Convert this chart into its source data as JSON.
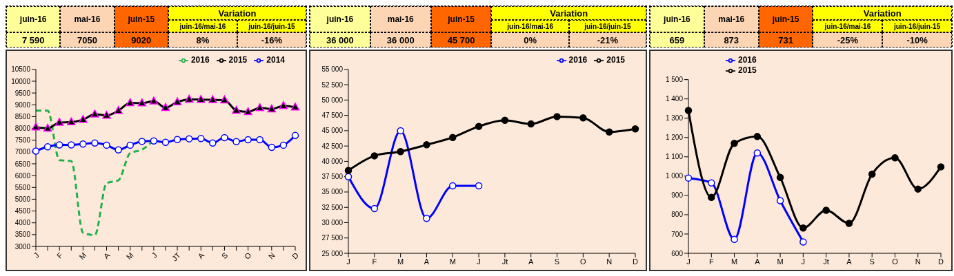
{
  "chart_data": [
    {
      "type": "line",
      "categories": [
        "J",
        null,
        "F",
        null,
        "M",
        null,
        "A",
        null,
        "M",
        null,
        "J",
        null,
        "JT",
        null,
        "A",
        null,
        "S",
        null,
        "O",
        null,
        "N",
        null,
        "D"
      ],
      "annotations": [
        "juin-16",
        "mai-16",
        "juin-15",
        "Variation",
        "juin-16/mai-16",
        "juin-16/juin-15",
        "7 590",
        "7050",
        "9020",
        "8%",
        "-16%"
      ],
      "series": [
        {
          "name": "2016",
          "color": "#22b14c",
          "line_style": "dashed",
          "marker": "none",
          "values": [
            8750,
            8750,
            6650,
            6620,
            3580,
            3480,
            5680,
            5800,
            6950,
            7100,
            7500,
            null,
            null,
            null,
            null,
            null,
            null,
            null,
            null,
            null,
            null,
            null,
            null
          ]
        },
        {
          "name": "2015",
          "color": "#000000",
          "marker": "triangle",
          "values": [
            8050,
            8000,
            8250,
            8270,
            8370,
            8600,
            8550,
            8750,
            9080,
            9070,
            9150,
            8880,
            9120,
            9230,
            9220,
            9210,
            9200,
            8760,
            8700,
            8870,
            8820,
            8960,
            8900
          ]
        },
        {
          "name": "2014",
          "color": "#0000ff",
          "marker": "circle",
          "values": [
            7040,
            7220,
            7300,
            7300,
            7340,
            7380,
            7290,
            7090,
            7290,
            7450,
            7470,
            7410,
            7530,
            7560,
            7570,
            7380,
            7610,
            7440,
            7520,
            7520,
            7200,
            7290,
            7700
          ]
        }
      ],
      "ylim": [
        3000,
        10500
      ],
      "yticks": [
        3000,
        3500,
        4000,
        4500,
        5000,
        5500,
        6000,
        6500,
        7000,
        7500,
        8000,
        8500,
        9000,
        9500,
        10000,
        10500
      ],
      "grid": false,
      "legend": "top right"
    },
    {
      "type": "line",
      "categories": [
        "J",
        "F",
        "M",
        "A",
        "M",
        "J",
        "Jt",
        "A",
        "S",
        "O",
        "N",
        "D"
      ],
      "annotations": [
        "juin-16",
        "mai-16",
        "juin-15",
        "Variation",
        "juin-16/mai-16",
        "juin-16/juin-15",
        "36 000",
        "36 000",
        "45 700",
        "0%",
        "-21%"
      ],
      "series": [
        {
          "name": "2016",
          "color": "#0000ff",
          "marker": "circle",
          "values": [
            37500,
            32300,
            45000,
            30700,
            36000,
            36000,
            null,
            null,
            null,
            null,
            null,
            null
          ]
        },
        {
          "name": "2015",
          "color": "#000000",
          "marker": "circle",
          "values": [
            38500,
            40900,
            41600,
            42700,
            43900,
            45700,
            46700,
            46100,
            47300,
            47100,
            44800,
            45300
          ]
        }
      ],
      "ylim": [
        25000,
        55000
      ],
      "yticks": [
        {
          "value": 25000,
          "label": "25 000"
        },
        {
          "value": 27500,
          "label": "27 500"
        },
        {
          "value": 30000,
          "label": "30 000"
        },
        {
          "value": 32500,
          "label": "32 500"
        },
        {
          "value": 35000,
          "label": "35 000"
        },
        {
          "value": 37500,
          "label": "37 500"
        },
        {
          "value": 40000,
          "label": "40 000"
        },
        {
          "value": 42500,
          "label": "42 500"
        },
        {
          "value": 45000,
          "label": "45 000"
        },
        {
          "value": 47500,
          "label": "47 500"
        },
        {
          "value": 50000,
          "label": "50 000"
        },
        {
          "value": 52500,
          "label": "52 500"
        },
        {
          "value": 55000,
          "label": "55 000"
        }
      ],
      "grid": false,
      "legend": "top right"
    },
    {
      "type": "line",
      "categories": [
        "J",
        "F",
        "M",
        "A",
        "M",
        "J",
        "Jt",
        "A",
        "S",
        "O",
        "N",
        "D"
      ],
      "annotations": [
        "juin-16",
        "mai-16",
        "juin-15",
        "Variation",
        "juin-16/mai-16",
        "juin-16/juin-15",
        "659",
        "873",
        "731",
        "-25%",
        "-10%"
      ],
      "series": [
        {
          "name": "2016",
          "color": "#0000ff",
          "marker": "circle",
          "values": [
            990,
            965,
            672,
            1120,
            873,
            659,
            null,
            null,
            null,
            null,
            null,
            null
          ]
        },
        {
          "name": "2015",
          "color": "#000000",
          "marker": "circle",
          "values": [
            1340,
            890,
            1170,
            1205,
            993,
            731,
            823,
            755,
            1010,
            1095,
            933,
            1048
          ]
        }
      ],
      "ylim": [
        600,
        1500
      ],
      "yticks": [
        {
          "value": 600,
          "label": "600"
        },
        {
          "value": 700,
          "label": "700"
        },
        {
          "value": 800,
          "label": "800"
        },
        {
          "value": 900,
          "label": "900"
        },
        {
          "value": 1000,
          "label": "1 000"
        },
        {
          "value": 1100,
          "label": "1 100"
        },
        {
          "value": 1200,
          "label": "1 200"
        },
        {
          "value": 1300,
          "label": "1 300"
        },
        {
          "value": 1400,
          "label": "1 400"
        },
        {
          "value": 1500,
          "label": "1 500"
        }
      ],
      "grid": false,
      "legend": "top"
    }
  ]
}
